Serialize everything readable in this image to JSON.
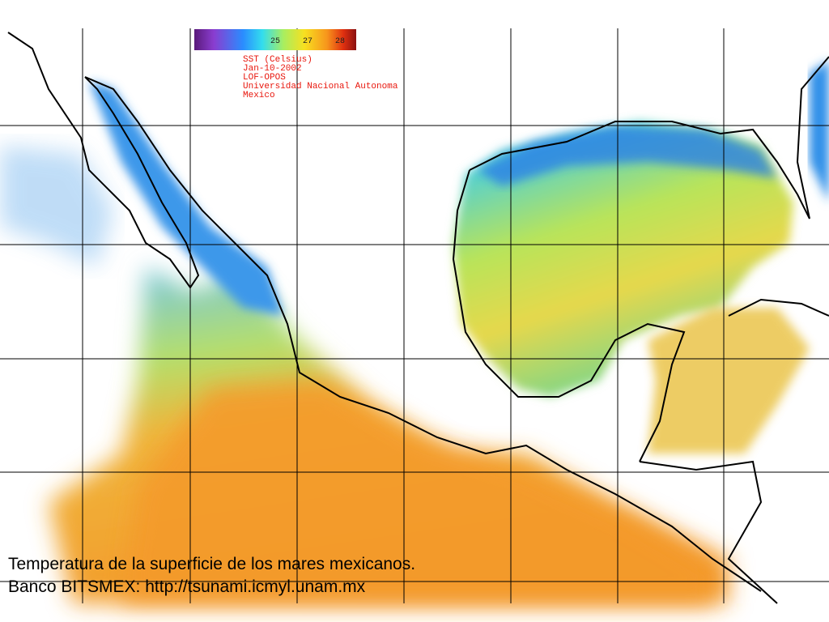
{
  "legend": {
    "ticks": [
      "25",
      "27",
      "28"
    ],
    "lines": [
      "SST (Celsius)",
      "Jan-10-2002",
      "LOF-OPOS",
      "Universidad Nacional Autonoma",
      "Mexico"
    ]
  },
  "caption": {
    "lines": [
      "Temperatura de la superficie de los mares mexicanos.",
      "Banco BITSMEX: http://tsunami.icmyl.unam.mx"
    ]
  }
}
